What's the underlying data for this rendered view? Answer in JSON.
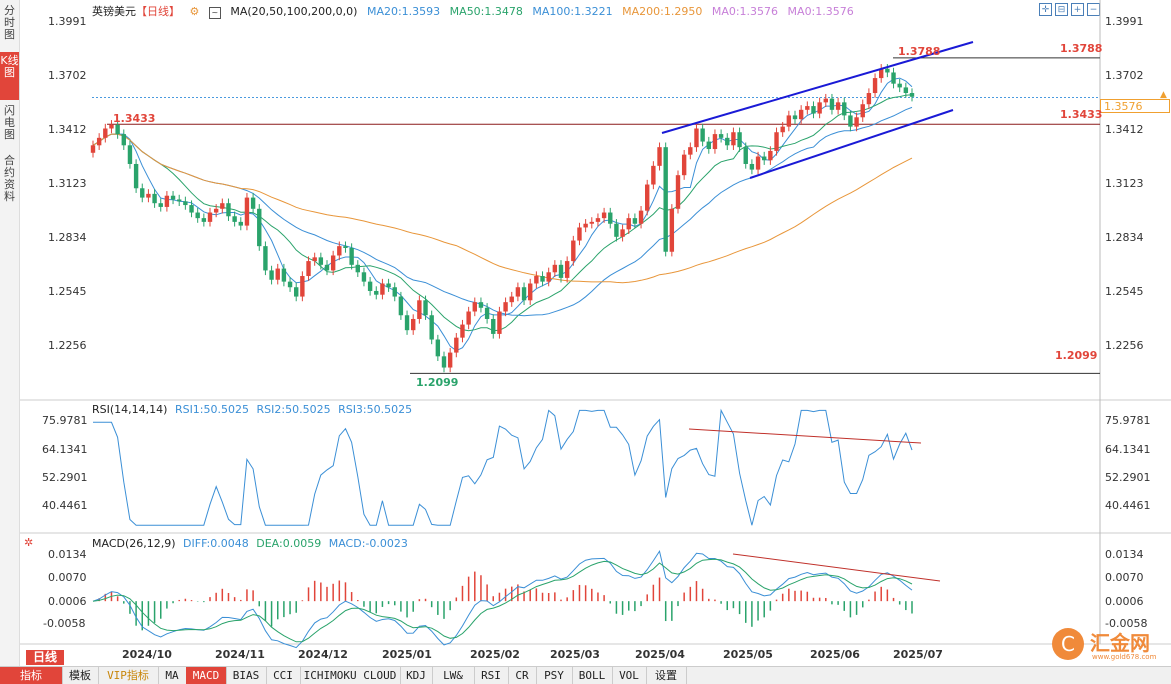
{
  "sidebar": {
    "tabs": [
      {
        "label": "分时图"
      },
      {
        "label": "K线图"
      },
      {
        "label": "闪电图"
      },
      {
        "label": "合约资料"
      }
    ]
  },
  "header": {
    "symbol": "英镑美元",
    "period": "【日线】",
    "ma_label": "MA(20,50,100,200,0,0)",
    "ma20": "MA20:1.3593",
    "ma50": "MA50:1.3478",
    "ma100": "MA100:1.3221",
    "ma200": "MA200:1.2950",
    "ma0a": "MA0:1.3576",
    "ma0b": "MA0:1.3576"
  },
  "price_axis": [
    "1.3991",
    "1.3702",
    "1.3412",
    "1.3123",
    "1.2834",
    "1.2545",
    "1.2256"
  ],
  "current_price": "1.3576",
  "annotations": {
    "high": "1.3788",
    "high_right": "1.3788",
    "level": "1.3433",
    "level_right": "1.3433",
    "low": "1.2099",
    "low_right": "1.2099"
  },
  "rsi": {
    "label": "RSI(14,14,14)",
    "rsi1": "RSI1:50.5025",
    "rsi2": "RSI2:50.5025",
    "rsi3": "RSI3:50.5025",
    "axis": [
      "75.9781",
      "64.1341",
      "52.2901",
      "40.4461"
    ]
  },
  "macd": {
    "label": "MACD(26,12,9)",
    "diff": "DIFF:0.0048",
    "dea": "DEA:0.0059",
    "macd": "MACD:-0.0023",
    "axis": [
      "0.0134",
      "0.0070",
      "0.0006",
      "-0.0058"
    ]
  },
  "x_axis": [
    "2024/10",
    "2024/11",
    "2024/12",
    "2025/01",
    "2025/02",
    "2025/03",
    "2025/04",
    "2025/05",
    "2025/06",
    "2025/07"
  ],
  "period_badge": "日线",
  "bottom_tabs": [
    {
      "label": "指标"
    },
    {
      "label": "模板"
    },
    {
      "label": "VIP指标"
    },
    {
      "label": "MA"
    },
    {
      "label": "MACD"
    },
    {
      "label": "BIAS"
    },
    {
      "label": "CCI"
    },
    {
      "label": "ICHIMOKU CLOUD"
    },
    {
      "label": "KDJ"
    },
    {
      "label": "LW&"
    },
    {
      "label": "RSI"
    },
    {
      "label": "CR"
    },
    {
      "label": "PSY"
    },
    {
      "label": "BOLL"
    },
    {
      "label": "VOL"
    },
    {
      "label": "设置"
    }
  ],
  "watermark": {
    "brand": "汇金网",
    "url": "www.gold678.com"
  },
  "colors": {
    "up": "#e1453a",
    "down": "#2aa36b",
    "ma20": "#3b8fd6",
    "ma50": "#2aa36b",
    "ma100": "#3b8fd6",
    "ma200": "#e8963a",
    "channel": "#1a1ad6",
    "price_line": "#4a9adf"
  },
  "chart_data": {
    "type": "candlestick",
    "price_range": [
      1.195,
      1.41
    ],
    "candles_closes": [
      1.332,
      1.336,
      1.341,
      1.343,
      1.338,
      1.332,
      1.322,
      1.309,
      1.304,
      1.306,
      1.301,
      1.299,
      1.305,
      1.303,
      1.302,
      1.3,
      1.296,
      1.293,
      1.291,
      1.296,
      1.298,
      1.301,
      1.294,
      1.291,
      1.289,
      1.304,
      1.298,
      1.278,
      1.265,
      1.26,
      1.266,
      1.259,
      1.256,
      1.251,
      1.262,
      1.27,
      1.272,
      1.268,
      1.265,
      1.273,
      1.278,
      1.277,
      1.268,
      1.264,
      1.259,
      1.254,
      1.252,
      1.258,
      1.256,
      1.251,
      1.241,
      1.233,
      1.239,
      1.249,
      1.241,
      1.228,
      1.219,
      1.213,
      1.221,
      1.229,
      1.236,
      1.243,
      1.248,
      1.245,
      1.239,
      1.231,
      1.243,
      1.248,
      1.251,
      1.256,
      1.249,
      1.258,
      1.262,
      1.259,
      1.264,
      1.268,
      1.261,
      1.27,
      1.281,
      1.288,
      1.29,
      1.291,
      1.293,
      1.296,
      1.29,
      1.283,
      1.287,
      1.293,
      1.29,
      1.297,
      1.311,
      1.321,
      1.331,
      1.275,
      1.298,
      1.316,
      1.327,
      1.331,
      1.341,
      1.334,
      1.33,
      1.338,
      1.336,
      1.332,
      1.339,
      1.331,
      1.322,
      1.319,
      1.326,
      1.324,
      1.329,
      1.339,
      1.342,
      1.348,
      1.346,
      1.351,
      1.353,
      1.349,
      1.355,
      1.357,
      1.351,
      1.355,
      1.348,
      1.342,
      1.347,
      1.354,
      1.36,
      1.368,
      1.373,
      1.371,
      1.365,
      1.363,
      1.36,
      1.358
    ],
    "high": 1.3788,
    "low": 1.2099,
    "level": 1.3433
  }
}
